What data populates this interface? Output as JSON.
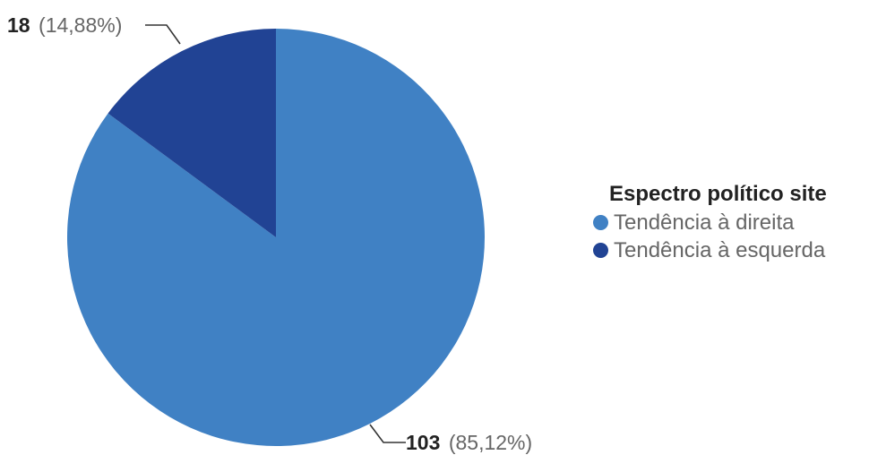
{
  "chart_data": {
    "type": "pie",
    "legend_title": "Espectro político site",
    "legend_position": "right",
    "slices": [
      {
        "label": "Tendência à direita",
        "value": 103,
        "percent_label": "(85,12%)",
        "color": "#4081c4"
      },
      {
        "label": "Tendência à esquerda",
        "value": 18,
        "percent_label": "(14,88%)",
        "color": "#214394"
      }
    ]
  }
}
